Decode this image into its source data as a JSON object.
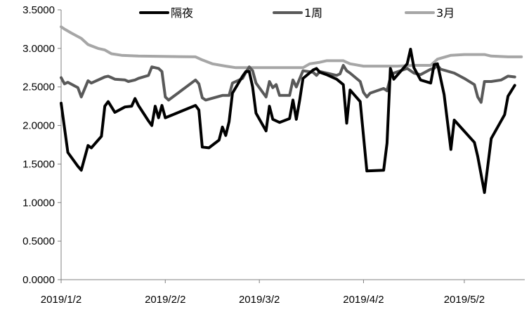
{
  "chart_data": {
    "type": "line",
    "title": "",
    "xlabel": "",
    "ylabel": "",
    "ylim": [
      0,
      3.5
    ],
    "y_ticks": [
      "0.0000",
      "0.5000",
      "1.0000",
      "1.5000",
      "2.0000",
      "2.5000",
      "3.0000",
      "3.5000"
    ],
    "x_range": [
      "2019-01-02",
      "2019-05-20"
    ],
    "x_ticks": [
      {
        "date": "2019-01-02",
        "label": "2019/1/2"
      },
      {
        "date": "2019-02-02",
        "label": "2019/2/2"
      },
      {
        "date": "2019-03-02",
        "label": "2019/3/2"
      },
      {
        "date": "2019-04-02",
        "label": "2019/4/2"
      },
      {
        "date": "2019-05-02",
        "label": "2019/5/2"
      }
    ],
    "grid": false,
    "legend_position": "top",
    "series": [
      {
        "name": "隔夜",
        "color": "#000000",
        "points": [
          [
            "2019-01-02",
            2.29
          ],
          [
            "2019-01-04",
            1.65
          ],
          [
            "2019-01-07",
            1.47
          ],
          [
            "2019-01-08",
            1.42
          ],
          [
            "2019-01-10",
            1.74
          ],
          [
            "2019-01-11",
            1.71
          ],
          [
            "2019-01-14",
            1.86
          ],
          [
            "2019-01-15",
            2.25
          ],
          [
            "2019-01-16",
            2.31
          ],
          [
            "2019-01-18",
            2.17
          ],
          [
            "2019-01-21",
            2.24
          ],
          [
            "2019-01-23",
            2.25
          ],
          [
            "2019-01-24",
            2.35
          ],
          [
            "2019-01-25",
            2.26
          ],
          [
            "2019-01-28",
            2.06
          ],
          [
            "2019-01-29",
            2.0
          ],
          [
            "2019-01-30",
            2.25
          ],
          [
            "2019-01-31",
            2.1
          ],
          [
            "2019-02-01",
            2.26
          ],
          [
            "2019-02-02",
            2.1
          ],
          [
            "2019-02-11",
            2.26
          ],
          [
            "2019-02-12",
            2.2
          ],
          [
            "2019-02-13",
            1.72
          ],
          [
            "2019-02-15",
            1.71
          ],
          [
            "2019-02-18",
            1.81
          ],
          [
            "2019-02-19",
            1.98
          ],
          [
            "2019-02-20",
            1.87
          ],
          [
            "2019-02-21",
            2.05
          ],
          [
            "2019-02-22",
            2.42
          ],
          [
            "2019-02-25",
            2.64
          ],
          [
            "2019-02-26",
            2.7
          ],
          [
            "2019-02-27",
            2.7
          ],
          [
            "2019-02-28",
            2.5
          ],
          [
            "2019-03-01",
            2.16
          ],
          [
            "2019-03-04",
            1.93
          ],
          [
            "2019-03-05",
            2.25
          ],
          [
            "2019-03-06",
            2.08
          ],
          [
            "2019-03-08",
            2.04
          ],
          [
            "2019-03-11",
            2.09
          ],
          [
            "2019-03-12",
            2.33
          ],
          [
            "2019-03-13",
            2.08
          ],
          [
            "2019-03-14",
            2.33
          ],
          [
            "2019-03-15",
            2.61
          ],
          [
            "2019-03-18",
            2.72
          ],
          [
            "2019-03-19",
            2.74
          ],
          [
            "2019-03-20",
            2.69
          ],
          [
            "2019-03-22",
            2.66
          ],
          [
            "2019-03-25",
            2.6
          ],
          [
            "2019-03-27",
            2.53
          ],
          [
            "2019-03-28",
            2.03
          ],
          [
            "2019-03-29",
            2.46
          ],
          [
            "2019-04-01",
            2.31
          ],
          [
            "2019-04-03",
            1.41
          ],
          [
            "2019-04-08",
            1.42
          ],
          [
            "2019-04-09",
            1.77
          ],
          [
            "2019-04-10",
            2.74
          ],
          [
            "2019-04-11",
            2.6
          ],
          [
            "2019-04-15",
            2.8
          ],
          [
            "2019-04-16",
            2.99
          ],
          [
            "2019-04-17",
            2.75
          ],
          [
            "2019-04-19",
            2.59
          ],
          [
            "2019-04-22",
            2.55
          ],
          [
            "2019-04-23",
            2.79
          ],
          [
            "2019-04-24",
            2.8
          ],
          [
            "2019-04-26",
            2.4
          ],
          [
            "2019-04-28",
            1.69
          ],
          [
            "2019-04-29",
            2.07
          ],
          [
            "2019-05-05",
            1.78
          ],
          [
            "2019-05-06",
            1.6
          ],
          [
            "2019-05-08",
            1.13
          ],
          [
            "2019-05-10",
            1.83
          ],
          [
            "2019-05-14",
            2.14
          ],
          [
            "2019-05-15",
            2.38
          ],
          [
            "2019-05-17",
            2.52
          ]
        ]
      },
      {
        "name": "1周",
        "color": "#595959",
        "points": [
          [
            "2019-01-02",
            2.62
          ],
          [
            "2019-01-03",
            2.54
          ],
          [
            "2019-01-04",
            2.56
          ],
          [
            "2019-01-07",
            2.49
          ],
          [
            "2019-01-08",
            2.37
          ],
          [
            "2019-01-10",
            2.58
          ],
          [
            "2019-01-11",
            2.55
          ],
          [
            "2019-01-15",
            2.63
          ],
          [
            "2019-01-16",
            2.64
          ],
          [
            "2019-01-17",
            2.62
          ],
          [
            "2019-01-18",
            2.6
          ],
          [
            "2019-01-21",
            2.59
          ],
          [
            "2019-01-22",
            2.57
          ],
          [
            "2019-01-24",
            2.59
          ],
          [
            "2019-01-25",
            2.61
          ],
          [
            "2019-01-28",
            2.65
          ],
          [
            "2019-01-29",
            2.76
          ],
          [
            "2019-01-31",
            2.74
          ],
          [
            "2019-02-01",
            2.7
          ],
          [
            "2019-02-02",
            2.37
          ],
          [
            "2019-02-03",
            2.33
          ],
          [
            "2019-02-11",
            2.59
          ],
          [
            "2019-02-12",
            2.54
          ],
          [
            "2019-02-13",
            2.36
          ],
          [
            "2019-02-14",
            2.33
          ],
          [
            "2019-02-19",
            2.39
          ],
          [
            "2019-02-21",
            2.39
          ],
          [
            "2019-02-22",
            2.55
          ],
          [
            "2019-02-25",
            2.61
          ],
          [
            "2019-02-26",
            2.69
          ],
          [
            "2019-02-27",
            2.76
          ],
          [
            "2019-02-28",
            2.71
          ],
          [
            "2019-03-01",
            2.55
          ],
          [
            "2019-03-04",
            2.37
          ],
          [
            "2019-03-05",
            2.57
          ],
          [
            "2019-03-06",
            2.49
          ],
          [
            "2019-03-07",
            2.53
          ],
          [
            "2019-03-08",
            2.39
          ],
          [
            "2019-03-11",
            2.39
          ],
          [
            "2019-03-12",
            2.59
          ],
          [
            "2019-03-13",
            2.5
          ],
          [
            "2019-03-15",
            2.71
          ],
          [
            "2019-03-18",
            2.69
          ],
          [
            "2019-03-19",
            2.65
          ],
          [
            "2019-03-20",
            2.7
          ],
          [
            "2019-03-22",
            2.68
          ],
          [
            "2019-03-25",
            2.65
          ],
          [
            "2019-03-26",
            2.67
          ],
          [
            "2019-03-27",
            2.78
          ],
          [
            "2019-03-28",
            2.71
          ],
          [
            "2019-03-29",
            2.68
          ],
          [
            "2019-04-01",
            2.57
          ],
          [
            "2019-04-02",
            2.43
          ],
          [
            "2019-04-03",
            2.37
          ],
          [
            "2019-04-04",
            2.42
          ],
          [
            "2019-04-08",
            2.48
          ],
          [
            "2019-04-09",
            2.45
          ],
          [
            "2019-04-10",
            2.62
          ],
          [
            "2019-04-11",
            2.68
          ],
          [
            "2019-04-15",
            2.74
          ],
          [
            "2019-04-17",
            2.68
          ],
          [
            "2019-04-19",
            2.66
          ],
          [
            "2019-04-22",
            2.73
          ],
          [
            "2019-04-23",
            2.74
          ],
          [
            "2019-04-24",
            2.78
          ],
          [
            "2019-04-25",
            2.73
          ],
          [
            "2019-04-29",
            2.68
          ],
          [
            "2019-05-02",
            2.61
          ],
          [
            "2019-05-05",
            2.53
          ],
          [
            "2019-05-06",
            2.37
          ],
          [
            "2019-05-07",
            2.3
          ],
          [
            "2019-05-08",
            2.57
          ],
          [
            "2019-05-10",
            2.57
          ],
          [
            "2019-05-13",
            2.59
          ],
          [
            "2019-05-15",
            2.64
          ],
          [
            "2019-05-17",
            2.63
          ]
        ]
      },
      {
        "name": "3月",
        "color": "#a6a6a6",
        "points": [
          [
            "2019-01-02",
            3.28
          ],
          [
            "2019-01-03",
            3.25
          ],
          [
            "2019-01-05",
            3.2
          ],
          [
            "2019-01-08",
            3.13
          ],
          [
            "2019-01-10",
            3.05
          ],
          [
            "2019-01-13",
            3.0
          ],
          [
            "2019-01-15",
            2.98
          ],
          [
            "2019-01-17",
            2.93
          ],
          [
            "2019-01-20",
            2.91
          ],
          [
            "2019-01-25",
            2.9
          ],
          [
            "2019-02-11",
            2.89
          ],
          [
            "2019-02-13",
            2.85
          ],
          [
            "2019-02-16",
            2.8
          ],
          [
            "2019-02-20",
            2.77
          ],
          [
            "2019-02-23",
            2.75
          ],
          [
            "2019-03-03",
            2.75
          ],
          [
            "2019-03-15",
            2.75
          ],
          [
            "2019-03-17",
            2.8
          ],
          [
            "2019-03-20",
            2.82
          ],
          [
            "2019-03-22",
            2.84
          ],
          [
            "2019-03-27",
            2.84
          ],
          [
            "2019-03-29",
            2.8
          ],
          [
            "2019-04-02",
            2.77
          ],
          [
            "2019-04-12",
            2.77
          ],
          [
            "2019-04-17",
            2.78
          ],
          [
            "2019-04-22",
            2.78
          ],
          [
            "2019-04-24",
            2.86
          ],
          [
            "2019-04-28",
            2.91
          ],
          [
            "2019-05-02",
            2.92
          ],
          [
            "2019-05-08",
            2.92
          ],
          [
            "2019-05-10",
            2.9
          ],
          [
            "2019-05-15",
            2.89
          ],
          [
            "2019-05-19",
            2.89
          ]
        ]
      }
    ]
  }
}
